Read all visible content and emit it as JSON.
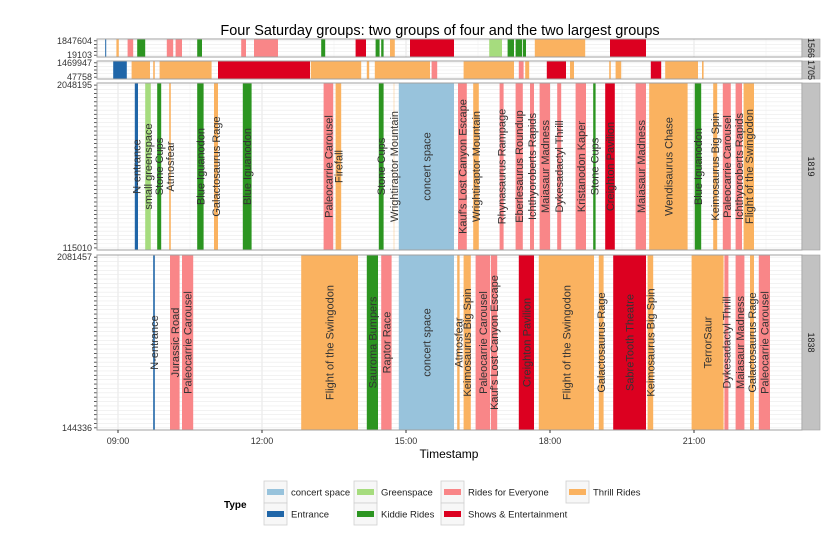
{
  "chart_data": {
    "type": "timeline",
    "title": "Four Saturday groups: two groups of four and the two largest groups",
    "xlabel": "Timestamp",
    "xticks": [
      "09:00",
      "12:00",
      "15:00",
      "18:00",
      "21:00"
    ],
    "xlim": [
      "08:34",
      "23:15"
    ],
    "grid": true,
    "legend": {
      "title": "Type",
      "position": "bottom",
      "entries": [
        {
          "name": "concert space",
          "color": "#98c3dc"
        },
        {
          "name": "Entrance",
          "color": "#2066a8"
        },
        {
          "name": "Greenspace",
          "color": "#a6dc7e"
        },
        {
          "name": "Kiddie Rides",
          "color": "#2c9521"
        },
        {
          "name": "Rides for Everyone",
          "color": "#f98688"
        },
        {
          "name": "Shows & Entertainment",
          "color": "#dc0020"
        },
        {
          "name": "Thrill Rides",
          "color": "#fab260"
        }
      ]
    },
    "panels": [
      {
        "strip": "1566",
        "ytick_labels": [
          "1847604",
          "19103"
        ],
        "rows": 5,
        "bars": [
          {
            "start": "08:44",
            "end": "08:45",
            "type": "Entrance"
          },
          {
            "start": "08:58",
            "end": "09:01",
            "type": "Thrill Rides"
          },
          {
            "start": "09:12",
            "end": "09:19",
            "type": "Rides for Everyone"
          },
          {
            "start": "09:24",
            "end": "09:34",
            "type": "Kiddie Rides"
          },
          {
            "start": "10:01",
            "end": "10:09",
            "type": "Rides for Everyone"
          },
          {
            "start": "10:12",
            "end": "10:20",
            "type": "Rides for Everyone"
          },
          {
            "start": "10:39",
            "end": "10:45",
            "type": "Kiddie Rides"
          },
          {
            "start": "11:34",
            "end": "11:40",
            "type": "Rides for Everyone"
          },
          {
            "start": "11:50",
            "end": "12:20",
            "type": "Rides for Everyone"
          },
          {
            "start": "13:14",
            "end": "13:19",
            "type": "Kiddie Rides"
          },
          {
            "start": "13:57",
            "end": "14:10",
            "type": "Shows & Entertainment"
          },
          {
            "start": "14:22",
            "end": "14:27",
            "type": "Kiddie Rides"
          },
          {
            "start": "14:29",
            "end": "14:32",
            "type": "Kiddie Rides"
          },
          {
            "start": "14:40",
            "end": "14:46",
            "type": "Thrill Rides"
          },
          {
            "start": "15:05",
            "end": "16:00",
            "type": "Shows & Entertainment"
          },
          {
            "start": "16:44",
            "end": "17:00",
            "type": "Greenspace"
          },
          {
            "start": "17:07",
            "end": "17:15",
            "type": "Kiddie Rides"
          },
          {
            "start": "17:17",
            "end": "17:25",
            "type": "Kiddie Rides"
          },
          {
            "start": "17:26",
            "end": "17:30",
            "type": "Kiddie Rides"
          },
          {
            "start": "17:41",
            "end": "18:44",
            "type": "Thrill Rides"
          },
          {
            "start": "19:15",
            "end": "20:00",
            "type": "Shows & Entertainment"
          }
        ]
      },
      {
        "strip": "1705",
        "ytick_labels": [
          "1469947",
          "47758"
        ],
        "rows": 5,
        "bars": [
          {
            "start": "08:54",
            "end": "09:11",
            "type": "Entrance"
          },
          {
            "start": "09:17",
            "end": "09:40",
            "type": "Thrill Rides"
          },
          {
            "start": "09:44",
            "end": "09:46",
            "type": "Thrill Rides"
          },
          {
            "start": "09:52",
            "end": "10:57",
            "type": "Thrill Rides"
          },
          {
            "start": "11:05",
            "end": "13:00",
            "type": "Shows & Entertainment"
          },
          {
            "start": "13:01",
            "end": "14:04",
            "type": "Thrill Rides"
          },
          {
            "start": "14:11",
            "end": "14:14",
            "type": "Thrill Rides"
          },
          {
            "start": "14:21",
            "end": "15:30",
            "type": "Thrill Rides"
          },
          {
            "start": "15:32",
            "end": "15:39",
            "type": "Rides for Everyone"
          },
          {
            "start": "16:12",
            "end": "17:15",
            "type": "Thrill Rides"
          },
          {
            "start": "17:21",
            "end": "17:27",
            "type": "Rides for Everyone"
          },
          {
            "start": "17:29",
            "end": "17:34",
            "type": "Thrill Rides"
          },
          {
            "start": "17:56",
            "end": "18:20",
            "type": "Shows & Entertainment"
          },
          {
            "start": "18:25",
            "end": "18:30",
            "type": "Thrill Rides"
          },
          {
            "start": "19:14",
            "end": "19:16",
            "type": "Thrill Rides"
          },
          {
            "start": "19:22",
            "end": "19:29",
            "type": "Thrill Rides"
          },
          {
            "start": "20:06",
            "end": "20:19",
            "type": "Shows & Entertainment"
          },
          {
            "start": "20:24",
            "end": "21:05",
            "type": "Thrill Rides"
          },
          {
            "start": "21:10",
            "end": "21:12",
            "type": "Thrill Rides"
          }
        ]
      },
      {
        "strip": "1819",
        "ytick_labels": [
          "2048195",
          "115010"
        ],
        "rows": 40,
        "bars": [
          {
            "start": "09:21",
            "end": "09:25",
            "type": "Entrance",
            "label": "N-entrance"
          },
          {
            "start": "09:34",
            "end": "09:41",
            "type": "Greenspace",
            "label": "small greenspace"
          },
          {
            "start": "09:49",
            "end": "09:54",
            "type": "Kiddie Rides",
            "label": "Stone Cups"
          },
          {
            "start": "10:04",
            "end": "10:06",
            "type": "Thrill Rides",
            "label": "Atmosfear"
          },
          {
            "start": "10:39",
            "end": "10:47",
            "type": "Kiddie Rides",
            "label": "Blue Iguanodon"
          },
          {
            "start": "11:00",
            "end": "11:05",
            "type": "Thrill Rides",
            "label": "Galactosaurus Rage"
          },
          {
            "start": "11:36",
            "end": "11:47",
            "type": "Kiddie Rides",
            "label": "Blue Iguanodon"
          },
          {
            "start": "13:17",
            "end": "13:29",
            "type": "Rides for Everyone",
            "label": "Paleocarrie Carousel"
          },
          {
            "start": "13:32",
            "end": "13:39",
            "type": "Thrill Rides",
            "label": "Firefall"
          },
          {
            "start": "14:26",
            "end": "14:32",
            "type": "Kiddie Rides",
            "label": "Stone Cups"
          },
          {
            "start": "14:44",
            "end": "14:46",
            "type": "Thrill Rides",
            "label": "Wrightiraptor Mountain",
            "faint": true
          },
          {
            "start": "14:51",
            "end": "16:00",
            "type": "concert space",
            "label": "concert space"
          },
          {
            "start": "16:05",
            "end": "16:16",
            "type": "Rides for Everyone",
            "label": "Kauf's Lost Canyon Escape"
          },
          {
            "start": "16:24",
            "end": "16:31",
            "type": "Thrill Rides",
            "label": "Wrightiraptor Mountain"
          },
          {
            "start": "16:57",
            "end": "17:02",
            "type": "Rides for Everyone",
            "label": "Rhynasaurus Rampage"
          },
          {
            "start": "17:17",
            "end": "17:26",
            "type": "Rides for Everyone",
            "label": "Eberlesaurus Roundup"
          },
          {
            "start": "17:35",
            "end": "17:40",
            "type": "Rides for Everyone",
            "label": "Ichthyoroberts Rapids"
          },
          {
            "start": "17:47",
            "end": "18:00",
            "type": "Rides for Everyone",
            "label": "Maiasaur Madness"
          },
          {
            "start": "18:09",
            "end": "18:14",
            "type": "Rides for Everyone",
            "label": "Dykesadactyl Thrill"
          },
          {
            "start": "18:32",
            "end": "18:45",
            "type": "Rides for Everyone",
            "label": "Kristanodon Kaper"
          },
          {
            "start": "18:54",
            "end": "18:57",
            "type": "Kiddie Rides",
            "label": "Stone Cups"
          },
          {
            "start": "19:09",
            "end": "19:21",
            "type": "Shows & Entertainment",
            "label": "Creighton Pavilion"
          },
          {
            "start": "19:47",
            "end": "20:00",
            "type": "Rides for Everyone",
            "label": "Maiasaur Madness"
          },
          {
            "start": "20:04",
            "end": "20:52",
            "type": "Thrill Rides",
            "label": "Wendisaurus Chase"
          },
          {
            "start": "21:01",
            "end": "21:09",
            "type": "Kiddie Rides",
            "label": "Blue Iguanodon"
          },
          {
            "start": "21:24",
            "end": "21:29",
            "type": "Thrill Rides",
            "label": "Keimosaurus Big Spin"
          },
          {
            "start": "21:36",
            "end": "21:46",
            "type": "Rides for Everyone",
            "label": "Paleocarrie Carousel"
          },
          {
            "start": "21:52",
            "end": "22:00",
            "type": "Rides for Everyone",
            "label": "Ichthyoroberts Rapids"
          },
          {
            "start": "22:02",
            "end": "22:15",
            "type": "Thrill Rides",
            "label": "Flight of the Swingodon"
          }
        ]
      },
      {
        "strip": "1838",
        "ytick_labels": [
          "2081457",
          "144336"
        ],
        "rows": 40,
        "bars": [
          {
            "start": "09:44",
            "end": "09:46",
            "type": "Entrance",
            "label": "N-entrance"
          },
          {
            "start": "10:05",
            "end": "10:17",
            "type": "Rides for Everyone",
            "label": "Jurassic Road"
          },
          {
            "start": "10:20",
            "end": "10:34",
            "type": "Rides for Everyone",
            "label": "Paleocarrie Carousel"
          },
          {
            "start": "12:49",
            "end": "14:00",
            "type": "Thrill Rides",
            "label": "Flight of the Swingodon"
          },
          {
            "start": "14:11",
            "end": "14:25",
            "type": "Kiddie Rides",
            "label": "Sauroma Bumpers"
          },
          {
            "start": "14:29",
            "end": "14:42",
            "type": "Rides for Everyone",
            "label": "Raptor Race"
          },
          {
            "start": "14:51",
            "end": "16:00",
            "type": "concert space",
            "label": "concert space"
          },
          {
            "start": "16:04",
            "end": "16:07",
            "type": "Thrill Rides",
            "label": "Atmosfear"
          },
          {
            "start": "16:12",
            "end": "16:21",
            "type": "Thrill Rides",
            "label": "Keimosaurus Big Spin"
          },
          {
            "start": "16:27",
            "end": "16:45",
            "type": "Rides for Everyone",
            "label": "Paleocarrie Carousel"
          },
          {
            "start": "16:46",
            "end": "16:54",
            "type": "Rides for Everyone",
            "label": "Kauf's Lost Canyon Escape"
          },
          {
            "start": "17:21",
            "end": "17:40",
            "type": "Shows & Entertainment",
            "label": "Creighton Pavilion"
          },
          {
            "start": "17:46",
            "end": "18:55",
            "type": "Thrill Rides",
            "label": "Flight of the Swingodon"
          },
          {
            "start": "19:01",
            "end": "19:07",
            "type": "Thrill Rides",
            "label": "Galactosaurus Rage"
          },
          {
            "start": "19:19",
            "end": "20:00",
            "type": "Shows & Entertainment",
            "label": "SabreTooth Theatre"
          },
          {
            "start": "20:02",
            "end": "20:09",
            "type": "Thrill Rides",
            "label": "Keimosaurus Big Spin"
          },
          {
            "start": "20:57",
            "end": "21:37",
            "type": "Thrill Rides",
            "label": "TerrorSaur"
          },
          {
            "start": "21:38",
            "end": "21:43",
            "type": "Rides for Everyone",
            "label": "Dykesadactyl Thrill"
          },
          {
            "start": "21:52",
            "end": "22:03",
            "type": "Rides for Everyone",
            "label": "Maiasaur Madness"
          },
          {
            "start": "22:10",
            "end": "22:15",
            "type": "Thrill Rides",
            "label": "Galactosaurus Rage"
          },
          {
            "start": "22:21",
            "end": "22:35",
            "type": "Rides for Everyone",
            "label": "Paleocarrie Carousel"
          }
        ]
      }
    ]
  }
}
